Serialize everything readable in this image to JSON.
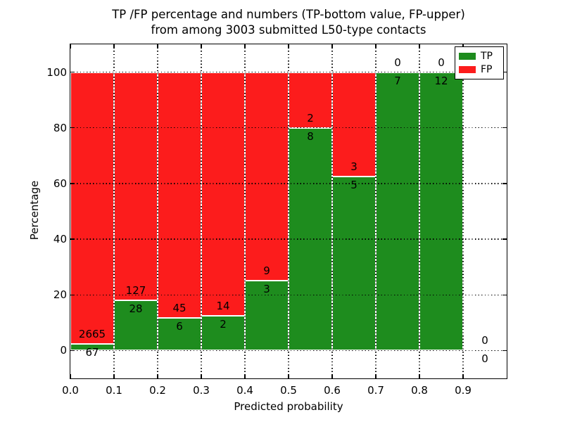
{
  "figure": {
    "title_lines": [
      "TP /FP percentage and numbers (TP-bottom value, FP-upper)",
      "from among 3003 submitted L50-type contacts"
    ]
  },
  "chart_data": {
    "type": "bar",
    "variant": "stacked-100-percent",
    "title": "TP /FP percentage and numbers (TP-bottom value, FP-upper) from among 3003 submitted L50-type contacts",
    "xlabel": "Predicted probability",
    "ylabel": "Percentage",
    "total_submitted": 3003,
    "categories": [
      "0.0-0.1",
      "0.1-0.2",
      "0.2-0.3",
      "0.3-0.4",
      "0.4-0.5",
      "0.5-0.6",
      "0.6-0.7",
      "0.7-0.8",
      "0.8-0.9",
      "0.9-1.0"
    ],
    "series": [
      {
        "name": "TP",
        "color": "#1e8c1e",
        "values": [
          67,
          28,
          6,
          2,
          3,
          8,
          5,
          7,
          12,
          0
        ]
      },
      {
        "name": "FP",
        "color": "#fc1c1c",
        "values": [
          2665,
          127,
          45,
          14,
          9,
          2,
          3,
          0,
          0,
          0
        ]
      }
    ],
    "tp_percent": [
      2.45,
      18.06,
      11.76,
      12.5,
      25.0,
      80.0,
      62.5,
      100.0,
      100.0,
      0.0
    ],
    "xticks": [
      "0.0",
      "0.1",
      "0.2",
      "0.3",
      "0.4",
      "0.5",
      "0.6",
      "0.7",
      "0.8",
      "0.9"
    ],
    "yticks": [
      "0",
      "20",
      "40",
      "60",
      "80",
      "100"
    ],
    "xlim": [
      0.0,
      1.0
    ],
    "ylim": [
      -10,
      110
    ],
    "grid": "dotted",
    "bar_edge_color": "#ffffff",
    "legend_position": "upper right",
    "legend": [
      {
        "label": "TP",
        "color": "#1e8c1e"
      },
      {
        "label": "FP",
        "color": "#fc1c1c"
      }
    ]
  }
}
